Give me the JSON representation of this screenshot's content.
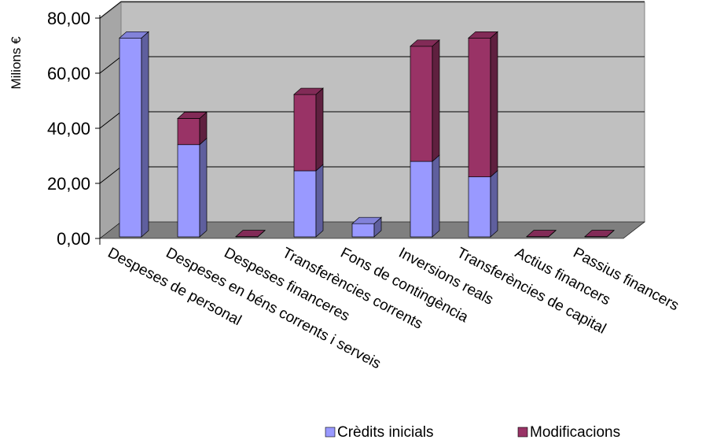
{
  "chart_data": {
    "type": "bar",
    "stacked": true,
    "three_d": true,
    "ylabel": "Milions €",
    "ylim": [
      0,
      80
    ],
    "yticks": [
      "0,00",
      "20,00",
      "40,00",
      "60,00",
      "80,00"
    ],
    "ytick_values": [
      0,
      20,
      40,
      60,
      80
    ],
    "grid": true,
    "legend_position": "bottom",
    "categories": [
      "Despeses de personal",
      "Despeses en béns corrents i serveis",
      "Despeses financeres",
      "Transferències corrents",
      "Fons de contingència",
      "Inversions reals",
      "Transferències de capital",
      "Actius financers",
      "Passius financers"
    ],
    "series": [
      {
        "name": "Crèdits inicials",
        "color": "#9999ff",
        "values": [
          72.2,
          33.5,
          0.1,
          24.0,
          4.8,
          27.4,
          21.8,
          0.1,
          0.1
        ]
      },
      {
        "name": "Modificacions",
        "color": "#993366",
        "values": [
          0.0,
          9.5,
          0.0,
          27.7,
          0.0,
          41.8,
          50.4,
          0.0,
          0.0
        ]
      }
    ]
  }
}
